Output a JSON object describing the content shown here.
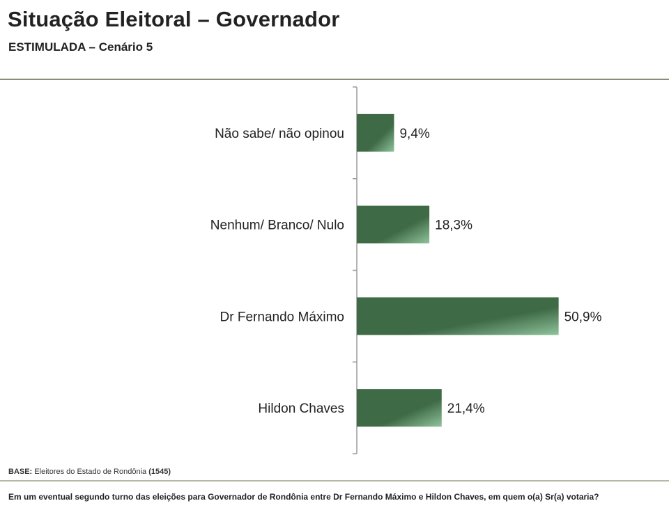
{
  "header": {
    "title": "Situação Eleitoral – Governador",
    "subtitle": "ESTIMULADA – Cenário 5"
  },
  "chart_data": {
    "type": "bar",
    "orientation": "horizontal",
    "categories": [
      "Não sabe/ não opinou",
      "Nenhum/ Branco/ Nulo",
      "Dr Fernando Máximo",
      "Hildon Chaves"
    ],
    "values": [
      9.4,
      18.3,
      50.9,
      21.4
    ],
    "value_labels": [
      "9,4%",
      "18,3%",
      "50,9%",
      "21,4%"
    ],
    "bar_color": "#3e6a45",
    "bar_highlight": "#8fc39b",
    "grid": false,
    "legend": "none"
  },
  "footer": {
    "base_label": "BASE:",
    "base_text": "Eleitores do Estado de Rondônia",
    "base_count": "(1545)",
    "question": "Em um eventual segundo turno das eleições para Governador de Rondônia entre Dr Fernando Máximo e Hildon Chaves, em quem o(a) Sr(a) votaria?"
  }
}
